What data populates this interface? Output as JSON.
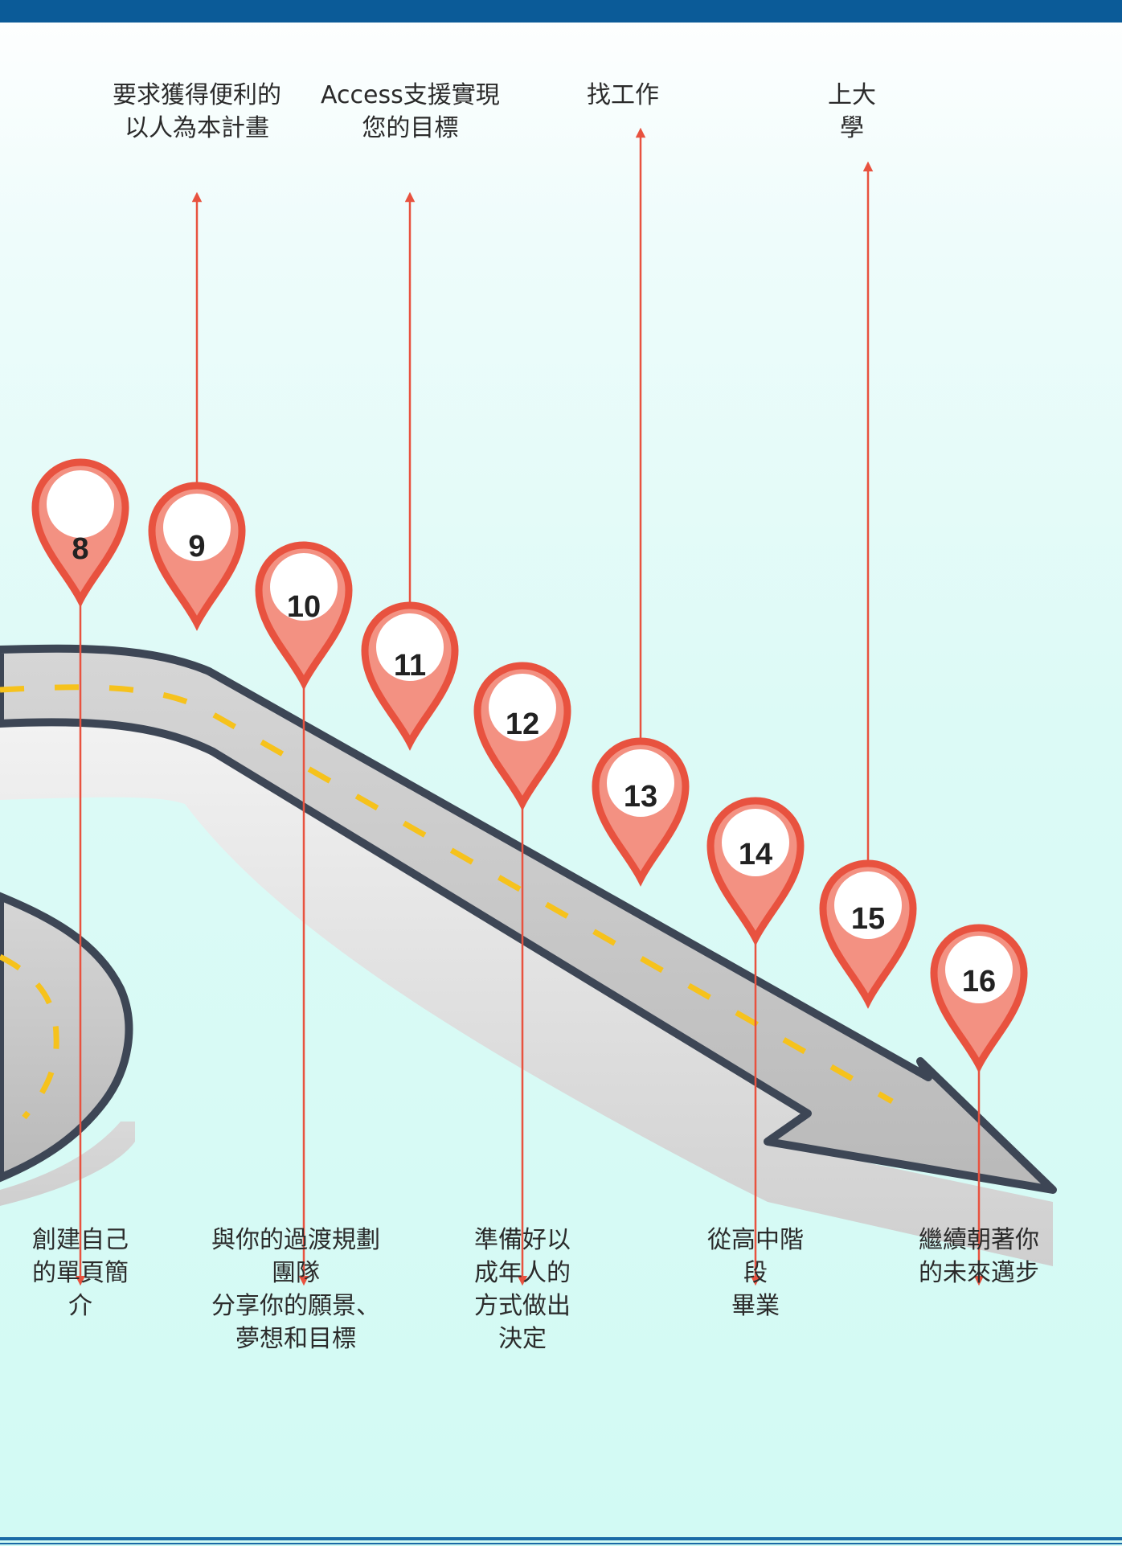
{
  "steps": [
    {
      "number": "8",
      "text": "創建自己\n的單頁簡\n介",
      "side": "bottom"
    },
    {
      "number": "9",
      "text": "要求獲得便利的\n以人為本計畫",
      "side": "top"
    },
    {
      "number": "10",
      "text": "與你的過渡規劃\n團隊\n分享你的願景、\n夢想和目標",
      "side": "bottom"
    },
    {
      "number": "11",
      "text": "Access支援實現\n您的目標",
      "side": "top"
    },
    {
      "number": "12",
      "text": "準備好以\n成年人的\n方式做出\n決定",
      "side": "bottom"
    },
    {
      "number": "13",
      "text": "找工作",
      "side": "top"
    },
    {
      "number": "14",
      "text": "從高中階\n段\n畢業",
      "side": "bottom"
    },
    {
      "number": "15",
      "text": "上大\n學",
      "side": "top"
    },
    {
      "number": "16",
      "text": "繼續朝著你\n的未來邁步",
      "side": "bottom"
    }
  ],
  "colors": {
    "pin_outer": "#e8523f",
    "pin_inner": "#f39182",
    "connector": "#e8523f",
    "road": "#c7c7c7",
    "road_edge": "#3d4655",
    "lane_dash": "#f6c21c",
    "header_bar": "#0b5b98"
  }
}
